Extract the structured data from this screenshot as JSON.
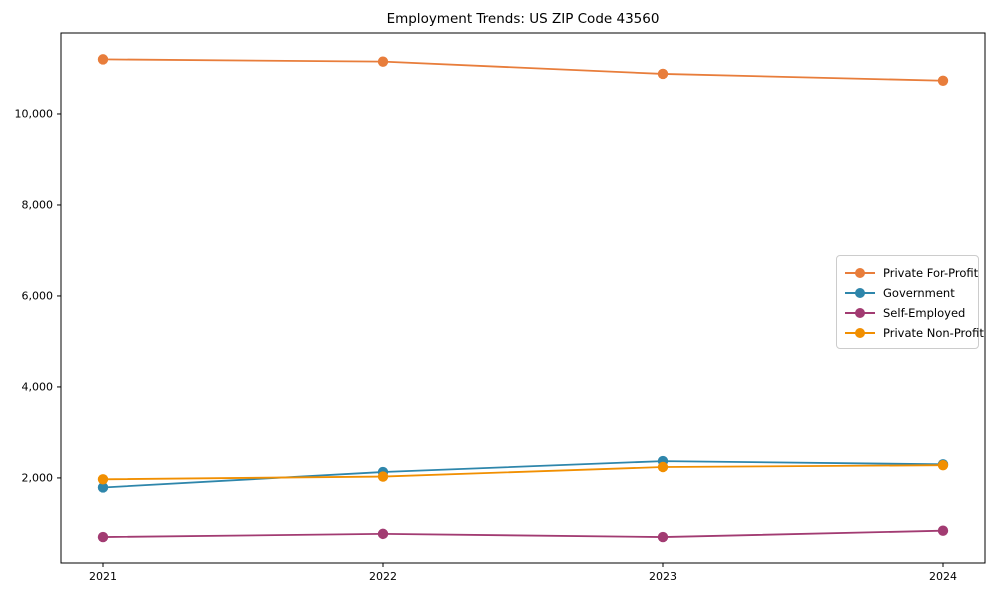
{
  "chart_data": {
    "type": "line",
    "title": "Employment Trends: US ZIP Code 43560",
    "categories": [
      2021,
      2022,
      2023,
      2024
    ],
    "series": [
      {
        "name": "Private For-Profit",
        "color": "#E87D3B",
        "values": [
          11200,
          11150,
          10880,
          10730
        ]
      },
      {
        "name": "Government",
        "color": "#2E86AB",
        "values": [
          1790,
          2130,
          2370,
          2300
        ]
      },
      {
        "name": "Self-Employed",
        "color": "#A23B72",
        "values": [
          700,
          770,
          700,
          840
        ]
      },
      {
        "name": "Private Non-Profit",
        "color": "#F18F01",
        "values": [
          1970,
          2030,
          2240,
          2280
        ]
      }
    ],
    "xlabel": "",
    "ylabel": "",
    "ylim": [
      130,
      11780
    ],
    "yticks": [
      2000,
      4000,
      6000,
      8000,
      10000
    ],
    "ytick_labels": [
      "2,000",
      "4,000",
      "6,000",
      "8,000",
      "10,000"
    ],
    "xtick_labels": [
      "2021",
      "2022",
      "2023",
      "2024"
    ],
    "grid": false,
    "legend_position": "center right",
    "marker": "circle",
    "axis_color": "#000000",
    "background_color": "#ffffff"
  }
}
